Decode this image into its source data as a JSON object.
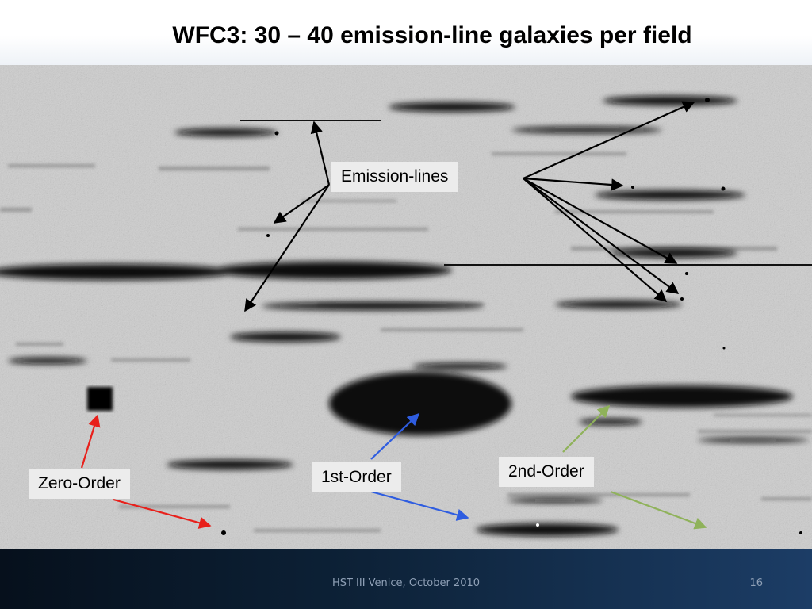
{
  "slide": {
    "title": "WFC3: 30 – 40 emission-line galaxies per field",
    "footer": "HST III   Venice, October 2010",
    "page_number": "16"
  },
  "annotations": {
    "emission_lines": "Emission-lines",
    "zero_order": "Zero-Order",
    "first_order": "1st-Order",
    "second_order": "2nd-Order"
  },
  "colors": {
    "emission_arrows": "#000000",
    "zero_order_arrows": "#e8201b",
    "first_order_arrows": "#2f5de0",
    "second_order_arrows": "#8fb25a",
    "label_background": "#ececec"
  }
}
